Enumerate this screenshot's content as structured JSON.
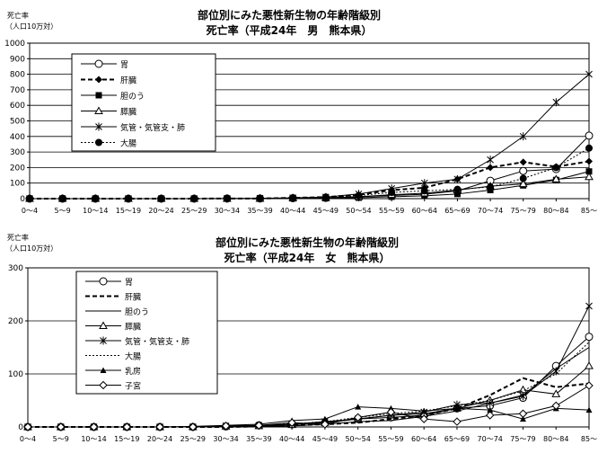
{
  "chart_data": [
    {
      "type": "line",
      "title": "部位別にみた悪性新生物の年齢階級別",
      "subtitle": "死亡率（平成24年　男　熊本県）",
      "ylabel": "死亡率",
      "yunit": "（人口10万対）",
      "ylim": [
        0,
        1000
      ],
      "yticks": [
        0,
        100,
        200,
        300,
        400,
        500,
        600,
        700,
        800,
        900,
        1000
      ],
      "grid": true,
      "legend_position": "top-left",
      "categories": [
        "0～4",
        "5～9",
        "10～14",
        "15～19",
        "20～24",
        "25～29",
        "30～34",
        "35～39",
        "40～44",
        "45～49",
        "50～54",
        "55～59",
        "60～64",
        "65～69",
        "70～74",
        "75～79",
        "80～84",
        "85～"
      ],
      "series": [
        {
          "name": "胃",
          "marker": "circle-open",
          "dash": "solid",
          "values": [
            0,
            0,
            0,
            0,
            0,
            0,
            1,
            1,
            3,
            5,
            12,
            20,
            28,
            50,
            115,
            178,
            190,
            405
          ]
        },
        {
          "name": "肝臓",
          "marker": "diamond-filled",
          "dash": "dashed",
          "values": [
            0,
            0,
            0,
            0,
            0,
            0,
            1,
            1,
            5,
            10,
            25,
            55,
            70,
            125,
            200,
            235,
            205,
            240
          ]
        },
        {
          "name": "胆のう",
          "marker": "square-filled",
          "dash": "solid",
          "values": [
            0,
            0,
            0,
            0,
            0,
            0,
            0,
            0,
            2,
            3,
            6,
            12,
            18,
            30,
            55,
            85,
            120,
            175
          ]
        },
        {
          "name": "膵臓",
          "marker": "triangle-open",
          "dash": "solid",
          "values": [
            0,
            0,
            0,
            0,
            0,
            0,
            0,
            0,
            3,
            5,
            12,
            25,
            35,
            55,
            80,
            95,
            125,
            140
          ]
        },
        {
          "name": "気管・気管支・肺",
          "marker": "star",
          "dash": "solid",
          "values": [
            0,
            0,
            0,
            0,
            0,
            0,
            1,
            2,
            5,
            10,
            30,
            65,
            100,
            125,
            250,
            400,
            620,
            800
          ]
        },
        {
          "name": "大腸",
          "marker": "circle-filled",
          "dash": "dotted",
          "values": [
            0,
            0,
            0,
            0,
            0,
            0,
            1,
            2,
            5,
            10,
            20,
            40,
            50,
            60,
            75,
            130,
            200,
            325
          ]
        }
      ]
    },
    {
      "type": "line",
      "title": "部位別にみた悪性新生物の年齢階級別",
      "subtitle": "死亡率（平成24年　女　熊本県）",
      "ylabel": "死亡率",
      "yunit": "（人口10万対）",
      "ylim": [
        0,
        300
      ],
      "yticks": [
        0,
        100,
        200,
        300
      ],
      "grid": true,
      "legend_position": "top-left",
      "categories": [
        "0～4",
        "5～9",
        "10～14",
        "15～19",
        "20～24",
        "25～29",
        "30～34",
        "35～39",
        "40～44",
        "45～49",
        "50～54",
        "55～59",
        "60～64",
        "65～69",
        "70～74",
        "75～79",
        "80～84",
        "85～"
      ],
      "series": [
        {
          "name": "胃",
          "marker": "circle-open",
          "dash": "solid",
          "values": [
            0,
            0,
            0,
            0,
            0,
            0,
            1,
            3,
            5,
            8,
            15,
            18,
            22,
            35,
            40,
            55,
            115,
            170
          ]
        },
        {
          "name": "肝臓",
          "marker": "none",
          "dash": "dashed",
          "values": [
            0,
            0,
            0,
            0,
            0,
            0,
            0,
            1,
            3,
            5,
            8,
            15,
            22,
            35,
            60,
            92,
            75,
            82
          ]
        },
        {
          "name": "胆のう",
          "marker": "none",
          "dash": "solid",
          "values": [
            0,
            0,
            0,
            0,
            0,
            0,
            0,
            1,
            2,
            5,
            10,
            12,
            20,
            30,
            45,
            60,
            110,
            150
          ]
        },
        {
          "name": "膵臓",
          "marker": "triangle-open",
          "dash": "solid",
          "values": [
            0,
            0,
            0,
            0,
            0,
            0,
            1,
            2,
            4,
            8,
            15,
            22,
            25,
            35,
            50,
            70,
            62,
            115
          ]
        },
        {
          "name": "気管・気管支・肺",
          "marker": "star",
          "dash": "solid",
          "values": [
            0,
            0,
            0,
            0,
            0,
            0,
            2,
            3,
            5,
            10,
            15,
            22,
            28,
            42,
            45,
            58,
            105,
            228
          ]
        },
        {
          "name": "大腸",
          "marker": "none",
          "dash": "dotted",
          "values": [
            0,
            0,
            0,
            0,
            0,
            0,
            1,
            3,
            6,
            10,
            18,
            25,
            30,
            40,
            50,
            68,
            100,
            160
          ]
        },
        {
          "name": "乳房",
          "marker": "triangle-filled",
          "dash": "solid",
          "values": [
            0,
            0,
            0,
            0,
            0,
            1,
            3,
            5,
            12,
            15,
            38,
            35,
            30,
            35,
            32,
            15,
            35,
            32
          ]
        },
        {
          "name": "子宮",
          "marker": "diamond-open",
          "dash": "solid",
          "values": [
            0,
            0,
            0,
            0,
            0,
            0,
            2,
            3,
            8,
            5,
            18,
            28,
            15,
            10,
            22,
            25,
            40,
            78
          ]
        }
      ]
    }
  ]
}
